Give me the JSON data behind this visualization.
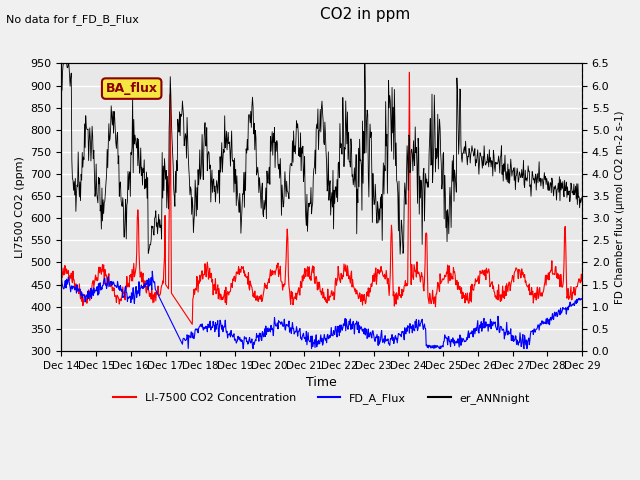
{
  "title": "CO2 in ppm",
  "top_left_text": "No data for f_FD_B_Flux",
  "box_label": "BA_flux",
  "xlabel": "Time",
  "ylabel_left": "LI7500 CO2 (ppm)",
  "ylabel_right": "FD Chamber flux (μmol CO2 m-2 s-1)",
  "ylim_left": [
    300,
    950
  ],
  "ylim_right": [
    0.0,
    6.5
  ],
  "yticks_left": [
    300,
    350,
    400,
    450,
    500,
    550,
    600,
    650,
    700,
    750,
    800,
    850,
    900,
    950
  ],
  "yticks_right": [
    0.0,
    0.5,
    1.0,
    1.5,
    2.0,
    2.5,
    3.0,
    3.5,
    4.0,
    4.5,
    5.0,
    5.5,
    6.0,
    6.5
  ],
  "x_tick_labels": [
    "Dec 14",
    "Dec 15",
    "Dec 16",
    "Dec 17",
    "Dec 18",
    "Dec 19",
    "Dec 20",
    "Dec 21",
    "Dec 22",
    "Dec 23",
    "Dec 24",
    "Dec 25",
    "Dec 26",
    "Dec 27",
    "Dec 28",
    "Dec 29"
  ],
  "legend_entries": [
    {
      "label": "LI-7500 CO2 Concentration",
      "color": "red",
      "linestyle": "-"
    },
    {
      "label": "FD_A_Flux",
      "color": "blue",
      "linestyle": "-"
    },
    {
      "label": "er_ANNnight",
      "color": "black",
      "linestyle": "-"
    }
  ],
  "background_color": "#f0f0f0",
  "plot_bg_color": "#e8e8e8",
  "grid_color": "white",
  "n_points": 900
}
